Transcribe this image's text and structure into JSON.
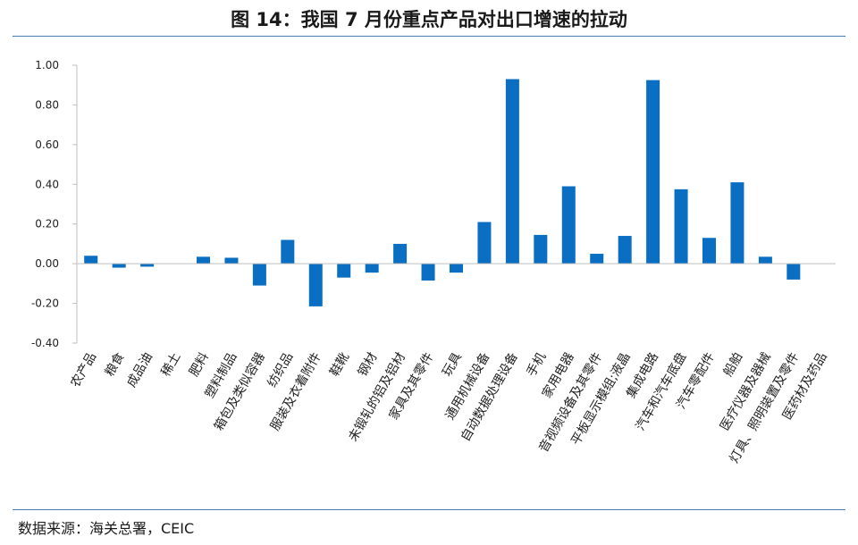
{
  "title": "图 14：我国 7 月份重点产品对出口增速的拉动",
  "source": "数据来源：海关总署，CEIC",
  "colors": {
    "bar": "#0a6fc2",
    "axis": "#bfbfbf",
    "rule": "#4a7ab3"
  },
  "chart_data": {
    "type": "bar",
    "title": "图 14：我国 7 月份重点产品对出口增速的拉动",
    "xlabel": "",
    "ylabel": "",
    "ylim": [
      -0.4,
      1.0
    ],
    "yticks": [
      "1.00",
      "0.80",
      "0.60",
      "0.40",
      "0.20",
      "0.00",
      "-0.20",
      "-0.40"
    ],
    "ytick_values": [
      1.0,
      0.8,
      0.6,
      0.4,
      0.2,
      0.0,
      -0.2,
      -0.4
    ],
    "grid": false,
    "categories": [
      "农产品",
      "粮食",
      "成品油",
      "稀土",
      "肥料",
      "塑料制品",
      "箱包及类似容器",
      "纺织品",
      "服装及衣着附件",
      "鞋靴",
      "钢材",
      "未锻轧的铝及铝材",
      "家具及其零件",
      "玩具",
      "通用机械设备",
      "自动数据处理设备",
      "手机",
      "家用电器",
      "音视频设备及其零件",
      "平板显示模组;液晶",
      "集成电路",
      "汽车和汽车底盘",
      "汽车零配件",
      "船舶",
      "医疗仪器及器械",
      "灯具、照明装置及零件",
      "医药材及药品"
    ],
    "values": [
      0.04,
      -0.02,
      -0.015,
      0.0,
      0.035,
      0.03,
      -0.11,
      0.12,
      -0.215,
      -0.07,
      -0.045,
      0.1,
      -0.085,
      -0.045,
      0.21,
      0.93,
      0.145,
      0.39,
      0.05,
      0.14,
      0.925,
      0.375,
      0.13,
      0.41,
      0.035,
      -0.08,
      0.0
    ]
  }
}
